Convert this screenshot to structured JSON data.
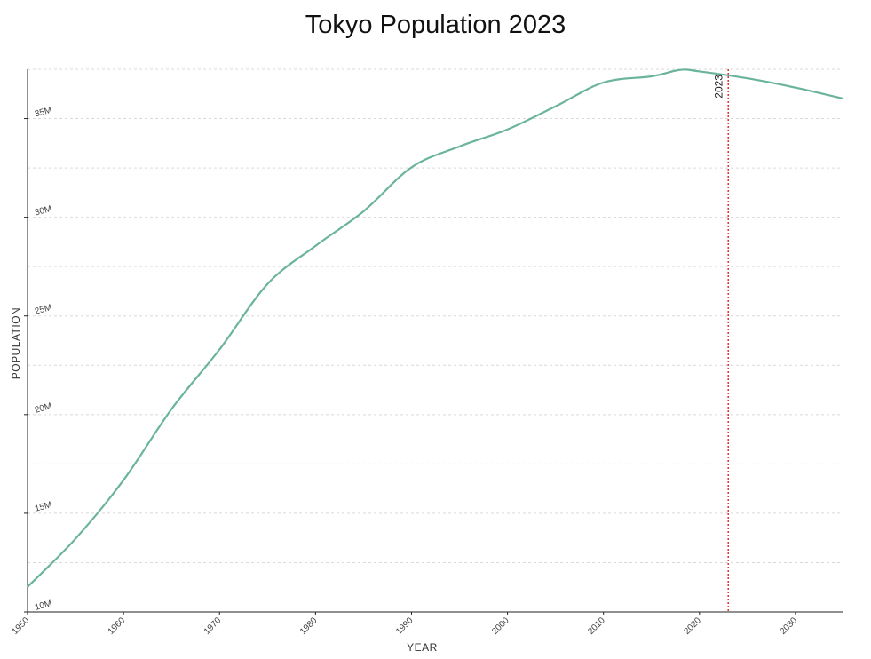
{
  "chart_data": {
    "type": "line",
    "title": "Tokyo Population 2023",
    "xlabel": "YEAR",
    "ylabel": "POPULATION",
    "xlim": [
      1950,
      2035
    ],
    "ylim": [
      10000000,
      37500000
    ],
    "x_ticks": [
      1950,
      1960,
      1970,
      1980,
      1990,
      2000,
      2010,
      2020,
      2030
    ],
    "x_tick_labels": [
      "1950",
      "1960",
      "1970",
      "1980",
      "1990",
      "2000",
      "2010",
      "2020",
      "2030"
    ],
    "y_ticks": [
      10000000,
      15000000,
      20000000,
      25000000,
      30000000,
      35000000
    ],
    "y_tick_labels": [
      "10M",
      "15M",
      "20M",
      "25M",
      "30M",
      "35M"
    ],
    "grid": true,
    "series": [
      {
        "color": "#6ab39c",
        "x": [
          1950,
          1955,
          1960,
          1965,
          1970,
          1975,
          1980,
          1985,
          1990,
          1995,
          2000,
          2005,
          2010,
          2015,
          2018,
          2020,
          2025,
          2030,
          2035
        ],
        "y": [
          11270000,
          13710000,
          16680000,
          20280000,
          23300000,
          26620000,
          28550000,
          30300000,
          32530000,
          33590000,
          34450000,
          35620000,
          36830000,
          37140000,
          37470000,
          37390000,
          37040000,
          36570000,
          36010000
        ]
      }
    ],
    "annotations": [
      {
        "type": "vline",
        "x": 2023,
        "label": "2023",
        "color": "#e03b3b"
      }
    ]
  }
}
